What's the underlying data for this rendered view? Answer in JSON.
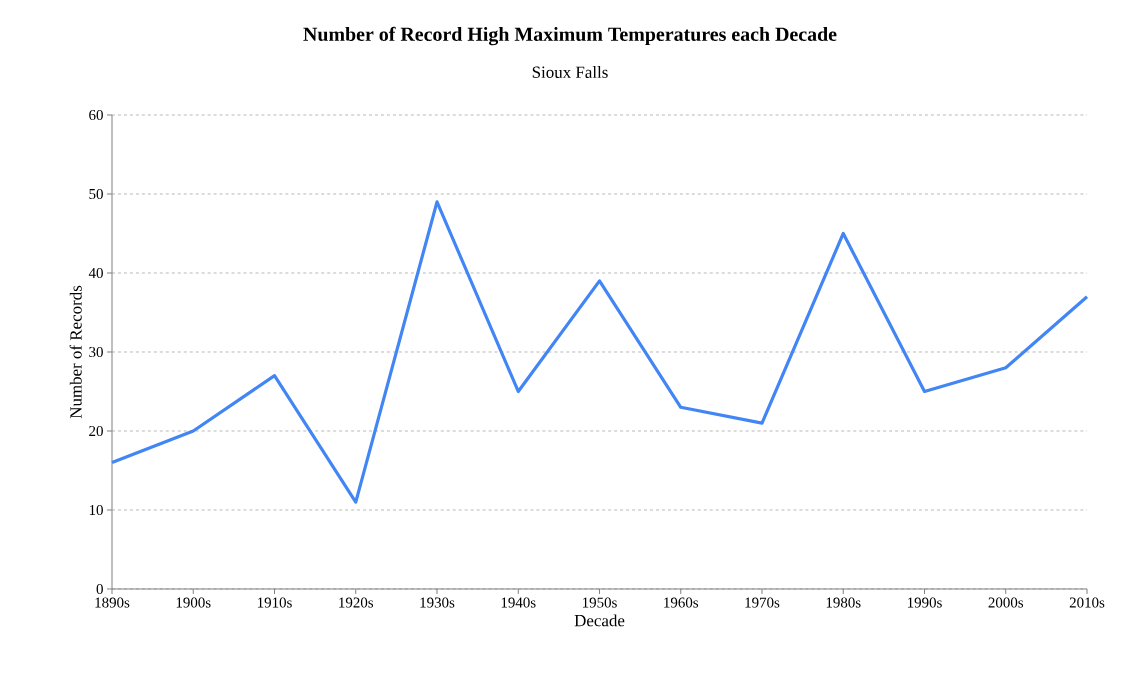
{
  "chart_data": {
    "type": "line",
    "title": "Number of Record High Maximum Temperatures each Decade",
    "subtitle": "Sioux Falls",
    "xlabel": "Decade",
    "ylabel": "Number of Records",
    "categories": [
      "1890s",
      "1900s",
      "1910s",
      "1920s",
      "1930s",
      "1940s",
      "1950s",
      "1960s",
      "1970s",
      "1980s",
      "1990s",
      "2000s",
      "2010s"
    ],
    "values": [
      16,
      20,
      27,
      11,
      49,
      25,
      39,
      23,
      21,
      45,
      25,
      28,
      37
    ],
    "color": "#4285f4",
    "ylim": [
      0,
      60
    ],
    "yticks": [
      0,
      10,
      20,
      30,
      40,
      50,
      60
    ],
    "grid": "y",
    "marker": "none",
    "line_style": "solid"
  }
}
